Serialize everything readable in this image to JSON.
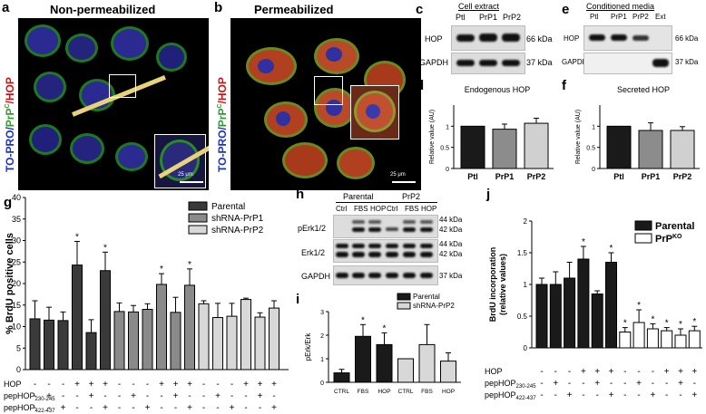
{
  "panel_a": {
    "letter": "a",
    "title": "Non-permeabilized",
    "stain_to": "TO-PRO/",
    "stain_prp": "PrP",
    "stain_prp_sup": "C",
    "stain_hop": "/HOP",
    "scale": "25 μm"
  },
  "panel_b": {
    "letter": "b",
    "title": "Permeabilized",
    "stain_to": "TO-PRO/",
    "stain_prp": "PrP",
    "stain_prp_sup": "C",
    "stain_hop": "/HOP",
    "scale": "25 μm"
  },
  "panel_c": {
    "letter": "c",
    "title": "Cell extract",
    "lanes": [
      "Ptl",
      "PrP1",
      "PrP2"
    ],
    "rows": [
      {
        "name": "HOP",
        "kda": "66 kDa"
      },
      {
        "name": "GAPDH",
        "kda": "37 kDa"
      }
    ]
  },
  "panel_e": {
    "letter": "e",
    "title": "Conditioned media",
    "lanes": [
      "Ptl",
      "PrP1",
      "PrP2",
      "Ext"
    ],
    "rows": [
      {
        "name": "HOP",
        "kda": "66 kDa"
      },
      {
        "name": "GAPDH",
        "kda": "37 kDa"
      }
    ]
  },
  "panel_h": {
    "letter": "h",
    "groups": [
      "Parental",
      "PrP2"
    ],
    "lanes": [
      "Ctrl",
      "FBS",
      "HOP",
      "Ctrl",
      "FBS",
      "HOP"
    ],
    "rows": [
      {
        "name": "pErk1/2",
        "kda": [
          "44 kDa",
          "42 kDa"
        ]
      },
      {
        "name": "Erk1/2",
        "kda": [
          "44 kDa",
          "42 kDa"
        ]
      },
      {
        "name": "GAPDH",
        "kda": [
          "37 kDa"
        ]
      }
    ]
  },
  "chart_data": [
    {
      "id": "d",
      "type": "bar",
      "title": "Endogenous HOP",
      "ylabel": "Relative value (AU)",
      "categories": [
        "Ptl",
        "PrP1",
        "PrP2"
      ],
      "values": [
        1.0,
        0.93,
        1.07
      ],
      "errors": [
        0,
        0.12,
        0.12
      ],
      "ylim": [
        0,
        1.5
      ],
      "yticks": [
        0,
        0.5,
        1
      ],
      "colors": [
        "#1a1a1a",
        "#8c8c8c",
        "#d0d0d0"
      ]
    },
    {
      "id": "f",
      "type": "bar",
      "title": "Secreted HOP",
      "ylabel": "Relative value (AU)",
      "categories": [
        "Ptl",
        "PrP1",
        "PrP2"
      ],
      "values": [
        1.0,
        0.9,
        0.9
      ],
      "errors": [
        0,
        0.18,
        0.09
      ],
      "ylim": [
        0,
        1.5
      ],
      "yticks": [
        0,
        0.5,
        1
      ],
      "colors": [
        "#1a1a1a",
        "#8c8c8c",
        "#d0d0d0"
      ]
    },
    {
      "id": "g",
      "type": "bar",
      "ylabel": "% BrdU positive cells",
      "ylim": [
        0,
        40
      ],
      "yticks": [
        0,
        5,
        10,
        15,
        20,
        25,
        30,
        35,
        40
      ],
      "series": [
        {
          "name": "Parental",
          "color": "#3a3a3a"
        },
        {
          "name": "shRNA-PrP1",
          "color": "#8a8a8a"
        },
        {
          "name": "shRNA-PrP2",
          "color": "#d8d8d8"
        }
      ],
      "bars": [
        {
          "s": 0,
          "v": 11.8,
          "e": 4.2,
          "star": false
        },
        {
          "s": 0,
          "v": 11.5,
          "e": 3.0,
          "star": false
        },
        {
          "s": 0,
          "v": 11.4,
          "e": 2.0,
          "star": false
        },
        {
          "s": 0,
          "v": 24.3,
          "e": 5.5,
          "star": true
        },
        {
          "s": 0,
          "v": 8.6,
          "e": 3.0,
          "star": false
        },
        {
          "s": 0,
          "v": 23.0,
          "e": 4.3,
          "star": true
        },
        {
          "s": 1,
          "v": 13.5,
          "e": 2.0,
          "star": false
        },
        {
          "s": 1,
          "v": 13.4,
          "e": 1.5,
          "star": false
        },
        {
          "s": 1,
          "v": 14.0,
          "e": 1.3,
          "star": false
        },
        {
          "s": 1,
          "v": 19.8,
          "e": 2.5,
          "star": true
        },
        {
          "s": 1,
          "v": 13.3,
          "e": 3.5,
          "star": false
        },
        {
          "s": 1,
          "v": 19.6,
          "e": 3.8,
          "star": true
        },
        {
          "s": 2,
          "v": 15.3,
          "e": 0.7,
          "star": false
        },
        {
          "s": 2,
          "v": 12.1,
          "e": 3.3,
          "star": false
        },
        {
          "s": 2,
          "v": 12.4,
          "e": 3.0,
          "star": false
        },
        {
          "s": 2,
          "v": 16.3,
          "e": 0.3,
          "star": false
        },
        {
          "s": 2,
          "v": 12.2,
          "e": 1.0,
          "star": false
        },
        {
          "s": 2,
          "v": 14.3,
          "e": 1.7,
          "star": false
        }
      ],
      "treatment_rows": [
        {
          "label": "HOP",
          "sub": "",
          "marks": [
            "-",
            "-",
            "-",
            "+",
            "+",
            "+",
            "-",
            "-",
            "-",
            "+",
            "+",
            "+",
            "-",
            "-",
            "-",
            "+",
            "+",
            "+"
          ]
        },
        {
          "label": "pepHOP",
          "sub": "230-245",
          "marks": [
            "-",
            "+",
            "-",
            "-",
            "+",
            "-",
            "-",
            "+",
            "-",
            "-",
            "+",
            "-",
            "-",
            "+",
            "-",
            "-",
            "+",
            "-"
          ]
        },
        {
          "label": "pepHOP",
          "sub": "422-437",
          "marks": [
            "-",
            "-",
            "+",
            "-",
            "-",
            "+",
            "-",
            "-",
            "+",
            "-",
            "-",
            "+",
            "-",
            "-",
            "+",
            "-",
            "-",
            "+"
          ]
        }
      ]
    },
    {
      "id": "i",
      "type": "bar",
      "ylabel": "pErk/Erk",
      "categories": [
        "CTRL",
        "FBS",
        "HOP",
        "CTRL",
        "FBS",
        "HOP"
      ],
      "values": [
        0.4,
        1.95,
        1.6,
        1.0,
        1.6,
        0.9
      ],
      "errors": [
        0.15,
        0.5,
        0.5,
        0,
        0.85,
        0.35
      ],
      "stars": [
        false,
        true,
        true,
        false,
        false,
        false
      ],
      "series_index": [
        0,
        0,
        0,
        1,
        1,
        1
      ],
      "ylim": [
        0,
        3.0
      ],
      "yticks": [
        0,
        1.0,
        2.0,
        3.0
      ],
      "series": [
        {
          "name": "Parental",
          "color": "#1a1a1a"
        },
        {
          "name": "shRNA-PrP2",
          "color": "#d8d8d8"
        }
      ]
    },
    {
      "id": "j",
      "type": "bar",
      "ylabel": "BrdU incorporation (relative values)",
      "ylim": [
        0,
        2.0
      ],
      "yticks": [
        0,
        0.5,
        1.0,
        1.5,
        2.0
      ],
      "series": [
        {
          "name": "Parental",
          "color": "#1a1a1a"
        },
        {
          "name": "PrP",
          "sup": "KO",
          "color": "#ffffff"
        }
      ],
      "bars": [
        {
          "s": 0,
          "v": 1.0,
          "e": 0.1,
          "star": false
        },
        {
          "s": 0,
          "v": 1.0,
          "e": 0.2,
          "star": false
        },
        {
          "s": 0,
          "v": 1.1,
          "e": 0.25,
          "star": false
        },
        {
          "s": 0,
          "v": 1.4,
          "e": 0.2,
          "star": true
        },
        {
          "s": 0,
          "v": 0.85,
          "e": 0.05,
          "star": false
        },
        {
          "s": 0,
          "v": 1.35,
          "e": 0.15,
          "star": true
        },
        {
          "s": 1,
          "v": 0.25,
          "e": 0.07,
          "star": true
        },
        {
          "s": 1,
          "v": 0.4,
          "e": 0.2,
          "star": true
        },
        {
          "s": 1,
          "v": 0.3,
          "e": 0.08,
          "star": true
        },
        {
          "s": 1,
          "v": 0.27,
          "e": 0.05,
          "star": true
        },
        {
          "s": 1,
          "v": 0.2,
          "e": 0.1,
          "star": true
        },
        {
          "s": 1,
          "v": 0.27,
          "e": 0.07,
          "star": true
        }
      ],
      "treatment_rows": [
        {
          "label": "HOP",
          "sub": "",
          "marks": [
            "-",
            "-",
            "-",
            "+",
            "+",
            "+",
            "-",
            "-",
            "-",
            "+",
            "+",
            "+"
          ]
        },
        {
          "label": "pepHOP",
          "sub": "230-245",
          "marks": [
            "-",
            "+",
            "-",
            "-",
            "+",
            "-",
            "-",
            "+",
            "-",
            "-",
            "+",
            "-"
          ]
        },
        {
          "label": "pepHOP",
          "sub": "422-437",
          "marks": [
            "-",
            "-",
            "+",
            "-",
            "-",
            "+",
            "-",
            "-",
            "+",
            "-",
            "-",
            "+"
          ]
        }
      ]
    }
  ]
}
